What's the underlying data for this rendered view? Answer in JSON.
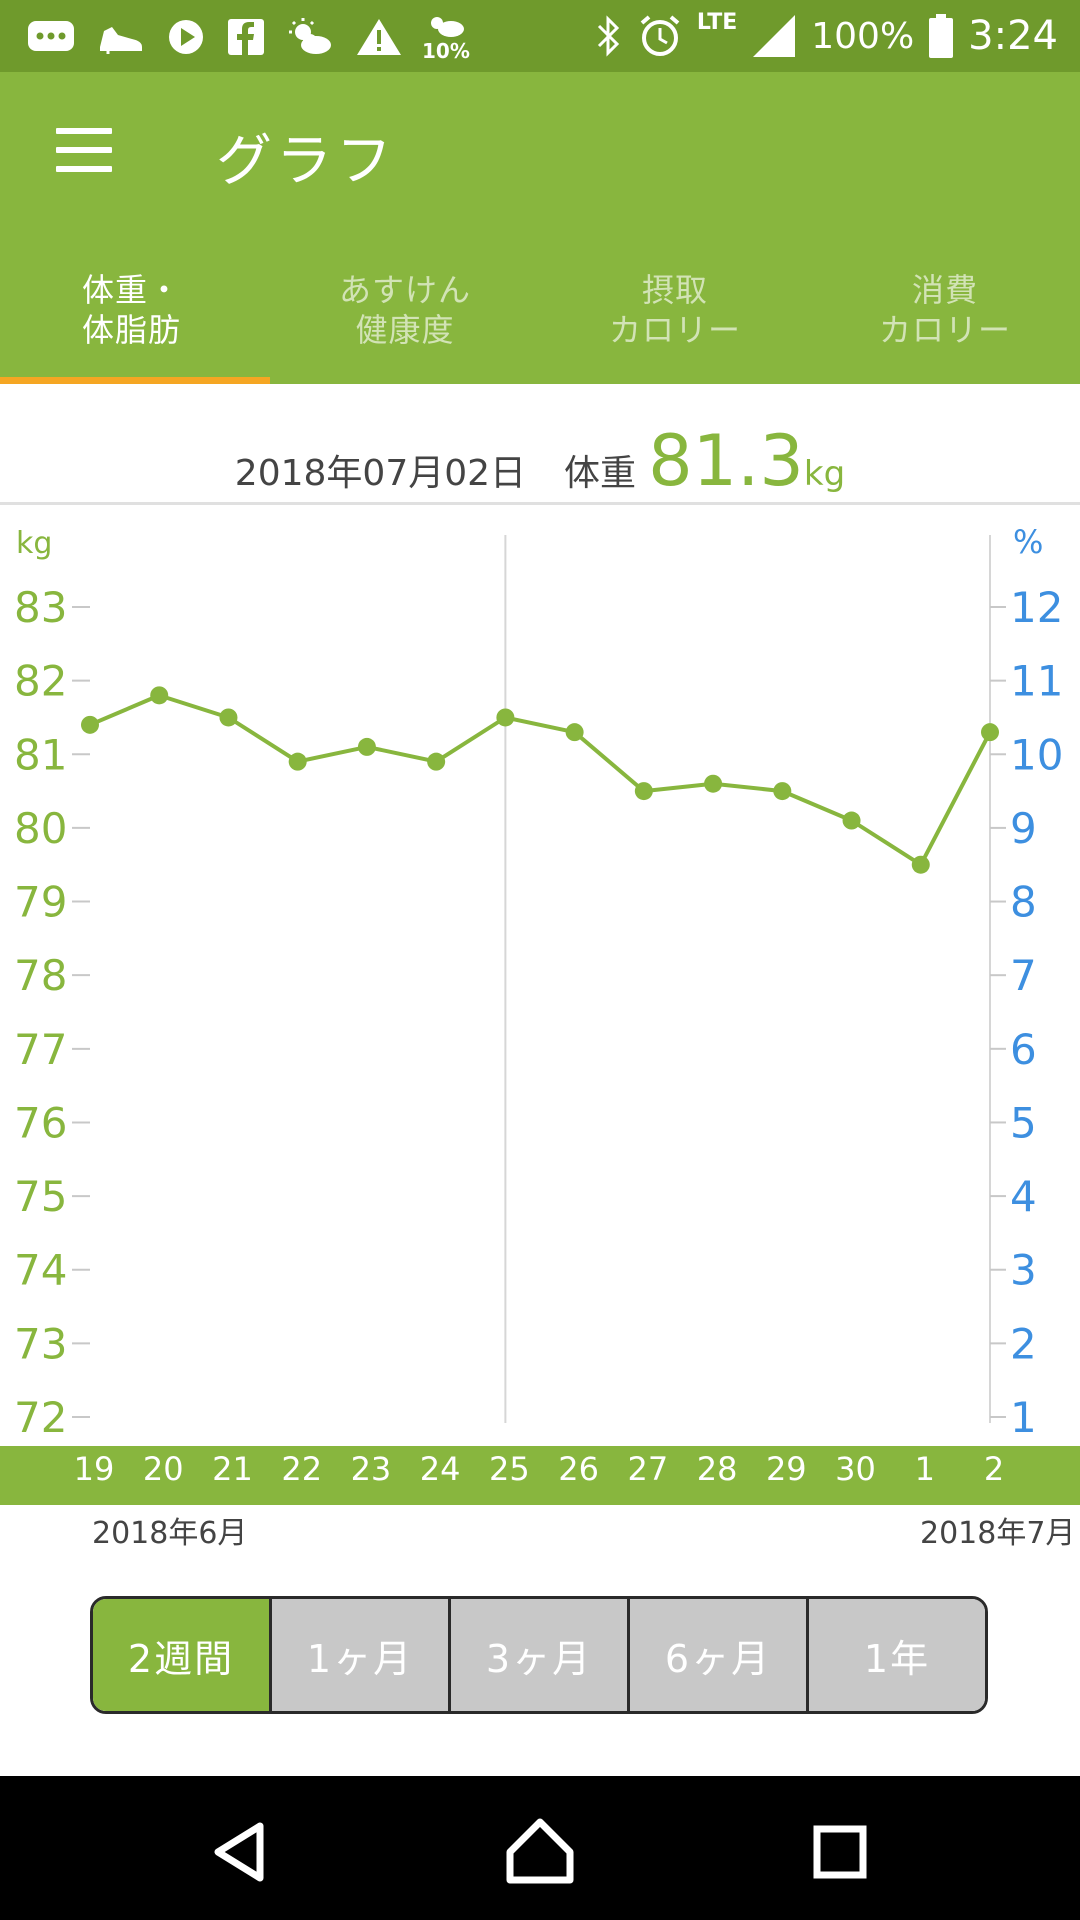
{
  "status_bar": {
    "battery": "100%",
    "time": "3:24",
    "network": "LTE",
    "weather_small": "10%",
    "icons_left": [
      "messages-icon",
      "shoe-icon",
      "play-icon",
      "facebook-icon",
      "weather-icon",
      "warning-icon",
      "rain-chance-icon"
    ],
    "icons_right": [
      "bluetooth-icon",
      "alarm-icon",
      "signal-icon",
      "battery-icon"
    ]
  },
  "toolbar": {
    "title": "グラフ"
  },
  "tabs": [
    {
      "line1": "体重・",
      "line2": "体脂肪",
      "active": true
    },
    {
      "line1": "あすけん",
      "line2": "健康度",
      "active": false
    },
    {
      "line1": "摂取",
      "line2": "カロリー",
      "active": false
    },
    {
      "line1": "消費",
      "line2": "カロリー",
      "active": false
    }
  ],
  "summary": {
    "date": "2018年07月02日",
    "label": "体重",
    "value": "81.3",
    "unit": "kg"
  },
  "chart_data": {
    "type": "line",
    "left_axis_label": "kg",
    "right_axis_label": "%",
    "y_left_ticks": [
      "83",
      "82",
      "81",
      "80",
      "79",
      "78",
      "77",
      "76",
      "75",
      "74",
      "73",
      "72"
    ],
    "y_right_ticks": [
      "12",
      "11",
      "10",
      "9",
      "8",
      "7",
      "6",
      "5",
      "4",
      "3",
      "2",
      "1"
    ],
    "ylim_left": [
      72,
      83
    ],
    "ylim_right": [
      1,
      12
    ],
    "categories": [
      "19",
      "20",
      "21",
      "22",
      "23",
      "24",
      "25",
      "26",
      "27",
      "28",
      "29",
      "30",
      "1",
      "2"
    ],
    "series": [
      {
        "values": [
          81.4,
          81.8,
          81.5,
          80.9,
          81.1,
          80.9,
          81.5,
          81.3,
          80.5,
          80.6,
          80.5,
          80.1,
          79.5,
          81.3
        ]
      }
    ],
    "month_start_label": "2018年6月",
    "month_end_label": "2018年7月",
    "colors": {
      "weight": "#88b63e",
      "percent_axis": "#3d8fe0"
    }
  },
  "range_selector": {
    "options": [
      "2週間",
      "1ヶ月",
      "3ヶ月",
      "6ヶ月",
      "1年"
    ],
    "selected": "2週間"
  },
  "colors": {
    "brand": "#88b63e",
    "status_bar": "#6f9a2c",
    "indicator": "#f5a623"
  }
}
